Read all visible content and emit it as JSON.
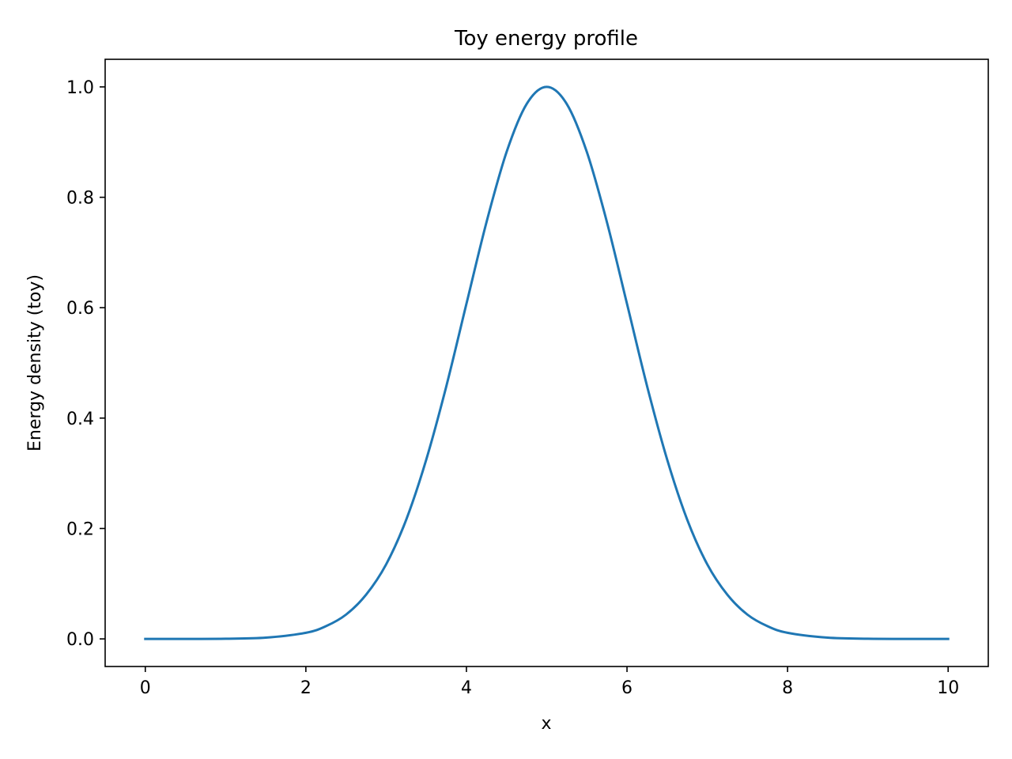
{
  "chart_data": {
    "type": "line",
    "title": "Toy energy profile",
    "xlabel": "x",
    "ylabel": "Energy density (toy)",
    "xlim": [
      -0.5,
      10.5
    ],
    "ylim": [
      -0.05,
      1.05
    ],
    "xticks": [
      0,
      2,
      4,
      6,
      8,
      10
    ],
    "xtick_labels": [
      "0",
      "2",
      "4",
      "6",
      "8",
      "10"
    ],
    "yticks": [
      0.0,
      0.2,
      0.4,
      0.6,
      0.8,
      1.0
    ],
    "ytick_labels": [
      "0.0",
      "0.2",
      "0.4",
      "0.6",
      "0.8",
      "1.0"
    ],
    "grid": false,
    "legend": "none",
    "series": [
      {
        "color": "#1f77b4",
        "x": [
          0,
          0.5,
          1.0,
          1.5,
          2.0,
          2.25,
          2.5,
          2.75,
          3.0,
          3.25,
          3.5,
          3.75,
          4.0,
          4.25,
          4.5,
          4.75,
          5.0,
          5.25,
          5.5,
          5.75,
          6.0,
          6.25,
          6.5,
          6.75,
          7.0,
          7.25,
          7.5,
          7.75,
          8.0,
          8.5,
          9.0,
          9.5,
          10.0
        ],
        "y": [
          0.0,
          0.0,
          0.0003,
          0.0022,
          0.011,
          0.023,
          0.044,
          0.08,
          0.135,
          0.216,
          0.325,
          0.458,
          0.607,
          0.755,
          0.882,
          0.969,
          1.0,
          0.969,
          0.882,
          0.755,
          0.607,
          0.458,
          0.325,
          0.216,
          0.135,
          0.08,
          0.044,
          0.023,
          0.011,
          0.0022,
          0.0003,
          0.0,
          0.0
        ]
      }
    ]
  }
}
